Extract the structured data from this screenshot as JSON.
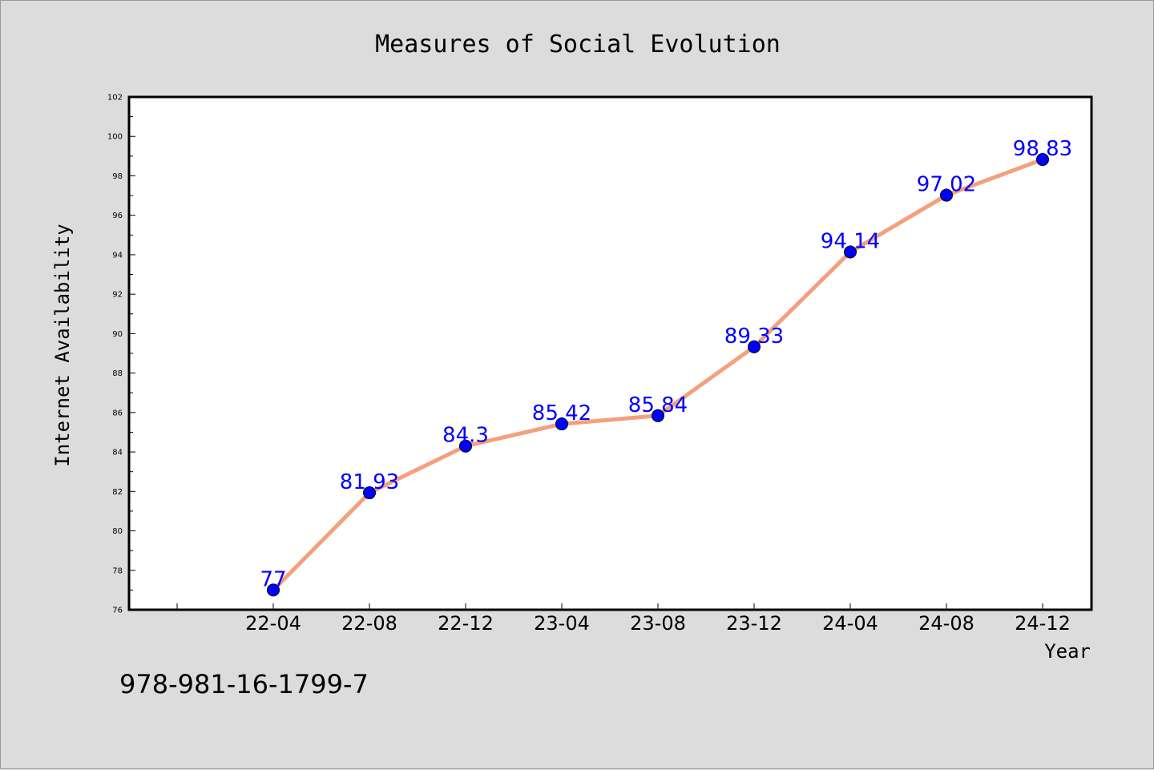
{
  "chart_data": {
    "type": "line",
    "title": "Measures of Social Evolution",
    "xlabel": "Year",
    "ylabel": "Internet Availability",
    "categories": [
      "22-04",
      "22-08",
      "22-12",
      "23-04",
      "23-08",
      "23-12",
      "24-04",
      "24-08",
      "24-12"
    ],
    "series": [
      {
        "values": [
          77,
          81.93,
          84.3,
          85.42,
          85.84,
          89.33,
          94.14,
          97.02,
          98.83
        ],
        "data_labels": [
          "77",
          "81.93",
          "84.3",
          "85.42",
          "85.84",
          "89.33",
          "94.14",
          "97.02",
          "98.83"
        ],
        "line_color": "#f4a07e",
        "marker_color": "#0000ff"
      }
    ],
    "ylim": [
      76,
      102
    ],
    "yticks": [
      "76",
      "78",
      "80",
      "82",
      "84",
      "86",
      "88",
      "90",
      "92",
      "94",
      "96",
      "98",
      "100",
      "102"
    ],
    "grid": false,
    "legend": "none"
  },
  "footer": {
    "isbn": "978-981-16-1799-7"
  },
  "colors": {
    "background": "#dcdcdc",
    "plot_background": "#ffffff",
    "line": "#f4a07e",
    "marker": "#0000ff",
    "data_label": "#0000ff"
  }
}
